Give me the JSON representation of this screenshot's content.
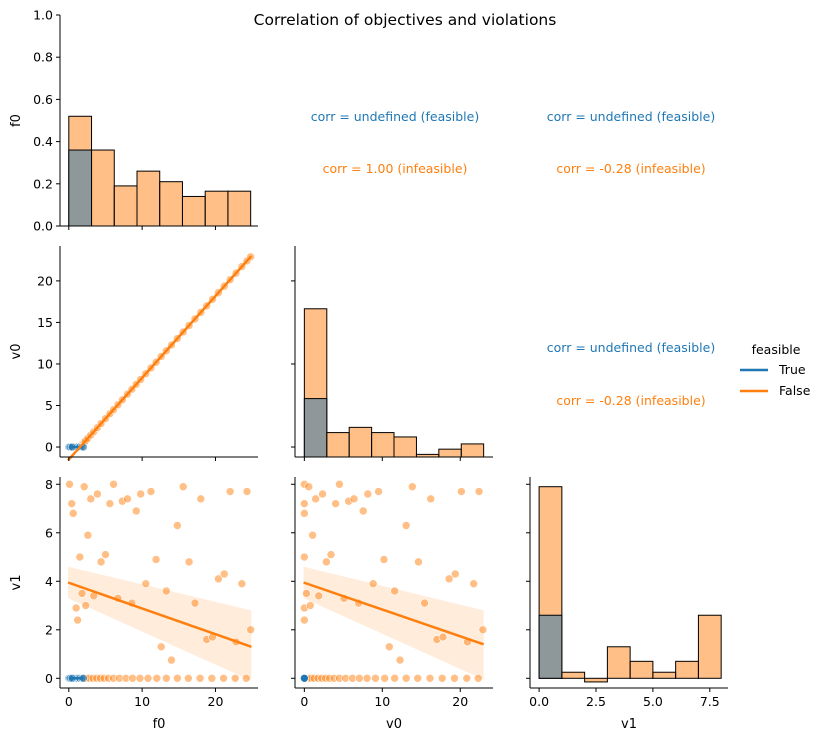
{
  "chart_data": {
    "type": "pairplot",
    "title": "Correlation of objectives and violations",
    "variables": [
      "f0",
      "v0",
      "v1"
    ],
    "hue": "feasible",
    "legend": {
      "title": "feasible",
      "placement": "right",
      "entries": [
        {
          "label": "True",
          "color": "#1f77b4"
        },
        {
          "label": "False",
          "color": "#ff7f0e"
        }
      ]
    },
    "colors": {
      "feasible": "#1f77b4",
      "infeasible": "#ff7f0e",
      "overlap": "#8e9799"
    },
    "axes": {
      "f0": {
        "range": [
          -1.2,
          25.8
        ],
        "ticks": [
          0,
          10,
          20
        ]
      },
      "v0": {
        "range": [
          -1.2,
          24.2
        ],
        "ticks": [
          0,
          10,
          20
        ]
      },
      "v1": {
        "range": [
          -0.4,
          8.3
        ],
        "ticks": [
          0,
          2,
          4,
          6,
          8
        ],
        "hist_ticks": [
          "0.0",
          "2.5",
          "5.0",
          "7.5"
        ]
      },
      "f0_density": {
        "range": [
          0,
          1.0
        ],
        "ticks": [
          "0.0",
          "0.2",
          "0.4",
          "0.6",
          "0.8",
          "1.0"
        ]
      }
    },
    "histograms": {
      "f0": {
        "bin_edges": [
          0,
          3.1,
          6.2,
          9.3,
          12.4,
          15.5,
          18.6,
          21.7,
          24.8
        ],
        "feasible": [
          0.36,
          0,
          0,
          0,
          0,
          0,
          0,
          0
        ],
        "infeasible": [
          0.52,
          0.36,
          0.19,
          0.26,
          0.21,
          0.14,
          0.165,
          0.165
        ]
      },
      "v0": {
        "bin_edges": [
          0,
          2.88,
          5.75,
          8.63,
          11.5,
          14.38,
          17.25,
          20.13,
          23.0
        ],
        "feasible": [
          6.7,
          0,
          0,
          0,
          0,
          0,
          0,
          0
        ],
        "infeasible": [
          17.0,
          2.8,
          3.4,
          2.8,
          2.3,
          0.3,
          0.9,
          1.5
        ],
        "y_range": [
          0,
          24.2
        ]
      },
      "v1": {
        "bin_edges": [
          0,
          1.0,
          2.0,
          3.0,
          4.0,
          5.0,
          6.0,
          7.0,
          8.0
        ],
        "feasible": [
          2.6,
          0,
          0,
          0,
          0,
          0,
          0,
          0
        ],
        "infeasible": [
          7.9,
          0.25,
          -0.15,
          1.3,
          0.7,
          0.25,
          0.7,
          2.6
        ],
        "y_range": [
          -0.4,
          8.3
        ]
      }
    },
    "scatter": {
      "feasible": {
        "f0": [
          0.0,
          0.3,
          0.6,
          0.9,
          1.2,
          1.5,
          1.8,
          2.0,
          0.15,
          0.45
        ],
        "v0": [
          0,
          0,
          0,
          0,
          0,
          0,
          0,
          0,
          0,
          0
        ],
        "v1": [
          0,
          0,
          0,
          0,
          0,
          0,
          0,
          0,
          0,
          0
        ]
      },
      "infeasible": {
        "f0": [
          0.1,
          0.4,
          0.6,
          1.0,
          1.2,
          1.5,
          1.8,
          2.1,
          2.3,
          2.6,
          3.0,
          3.4,
          3.9,
          4.4,
          5.0,
          5.6,
          6.1,
          6.7,
          7.3,
          8.0,
          8.6,
          9.2,
          9.8,
          10.5,
          11.2,
          11.9,
          12.6,
          13.3,
          14.0,
          14.8,
          15.6,
          16.4,
          17.2,
          18.0,
          18.8,
          19.6,
          20.4,
          21.2,
          22.0,
          22.8,
          23.6,
          24.3,
          24.8,
          0.2,
          0.3,
          0.5,
          0.8,
          1.1,
          1.4,
          1.7,
          2.0,
          2.4,
          2.8,
          3.3,
          3.8,
          4.3,
          4.8,
          5.4,
          6.1,
          6.9,
          7.8,
          8.7,
          9.7,
          10.8,
          12.0,
          13.3,
          14.8,
          16.3,
          17.9,
          19.5,
          21.1,
          22.7,
          24.2
        ],
        "v1": [
          8.0,
          7.2,
          6.8,
          2.9,
          2.4,
          5.0,
          3.5,
          7.9,
          3.0,
          5.9,
          7.4,
          3.4,
          7.6,
          4.8,
          5.1,
          7.2,
          8.0,
          3.3,
          7.3,
          7.4,
          3.1,
          6.9,
          7.6,
          3.9,
          7.7,
          4.9,
          1.3,
          3.6,
          0.75,
          6.3,
          7.9,
          4.8,
          3.1,
          7.4,
          1.6,
          1.7,
          4.1,
          4.3,
          7.7,
          1.5,
          3.9,
          7.7,
          2.0,
          0,
          0,
          0,
          0,
          0,
          0,
          0,
          0,
          0,
          0,
          0,
          0,
          0,
          0,
          0,
          0,
          0,
          0,
          0,
          0,
          0,
          0,
          0,
          0,
          0,
          0,
          0,
          0,
          0,
          0
        ]
      }
    },
    "regression": {
      "f0_v0": {
        "x": [
          -0.1,
          24.9
        ],
        "y": [
          -1.6,
          23.0
        ]
      },
      "f0_v1": {
        "x": [
          -0.1,
          24.9
        ],
        "y": [
          3.95,
          1.3
        ],
        "ci_low_start": 3.3,
        "ci_high_start": 4.6,
        "ci_low_end": -0.1,
        "ci_high_end": 2.8
      },
      "v0_v1": {
        "x": [
          -0.1,
          23.0
        ],
        "y": [
          3.95,
          1.4
        ],
        "ci_low_start": 3.3,
        "ci_high_start": 4.6,
        "ci_low_end": -0.05,
        "ci_high_end": 2.8
      }
    },
    "annotations": [
      {
        "panel": "f0_v0",
        "feasible": "corr = undefined (feasible)",
        "infeasible": "corr = 1.00 (infeasible)"
      },
      {
        "panel": "f0_v1",
        "feasible": "corr = undefined (feasible)",
        "infeasible": "corr = -0.28 (infeasible)"
      },
      {
        "panel": "v0_v1",
        "feasible": "corr = undefined (feasible)",
        "infeasible": "corr = -0.28 (infeasible)"
      }
    ]
  }
}
